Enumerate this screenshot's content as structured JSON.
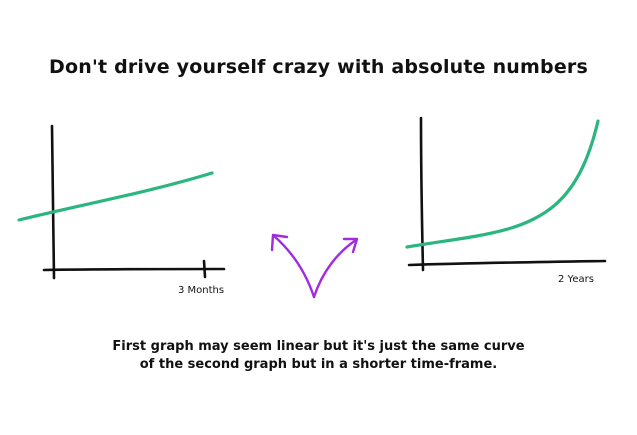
{
  "title": "Don't drive yourself crazy with absolute numbers",
  "left_graph": {
    "x_label": "3 Months"
  },
  "right_graph": {
    "x_label": "2 Years"
  },
  "caption": {
    "line1": "First graph may seem linear but it's just the same curve",
    "line2": "of the second graph but in a shorter time-frame."
  },
  "colors": {
    "curve": "#2bb57f",
    "arrows": "#a12be0",
    "ink": "#111111"
  }
}
